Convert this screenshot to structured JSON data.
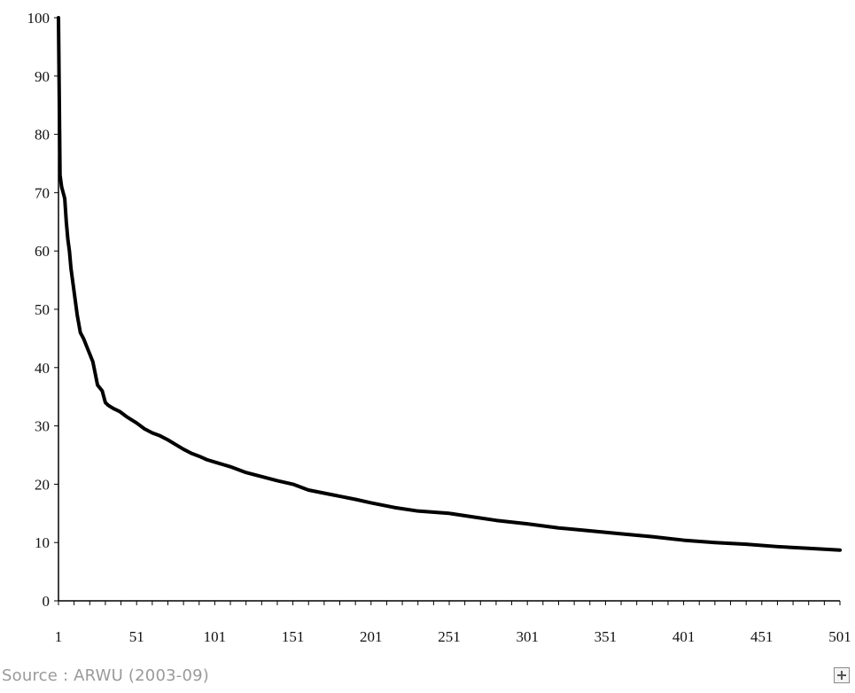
{
  "chart_data": {
    "type": "line",
    "title": "",
    "xlabel": "",
    "ylabel": "",
    "xlim": [
      1,
      501
    ],
    "ylim": [
      0,
      100
    ],
    "grid": false,
    "legend": "none",
    "x_ticks": [
      "1",
      "51",
      "101",
      "151",
      "201",
      "251",
      "301",
      "351",
      "401",
      "451",
      "501"
    ],
    "y_ticks": [
      "0",
      "10",
      "20",
      "30",
      "40",
      "50",
      "60",
      "70",
      "80",
      "90",
      "100"
    ],
    "line_color": "#000000",
    "series": [
      {
        "x": [
          1,
          2,
          3,
          4,
          5,
          6,
          7,
          8,
          9,
          10,
          11,
          13,
          15,
          17,
          20,
          23,
          26,
          29,
          31,
          33,
          36,
          40,
          45,
          51,
          56,
          61,
          66,
          71,
          76,
          81,
          86,
          91,
          96,
          101,
          111,
          121,
          131,
          141,
          151,
          161,
          176,
          191,
          201,
          216,
          231,
          251,
          266,
          281,
          301,
          321,
          341,
          361,
          381,
          401,
          421,
          441,
          461,
          481,
          501
        ],
        "y": [
          100,
          73,
          71,
          70,
          69,
          65,
          62,
          60,
          57,
          55,
          53,
          49,
          46,
          45,
          43,
          41,
          37,
          36,
          34,
          33.5,
          33,
          32.5,
          31.5,
          30.5,
          29.5,
          28.8,
          28.3,
          27.6,
          26.8,
          26,
          25.3,
          24.8,
          24.2,
          23.8,
          23,
          22,
          21.3,
          20.6,
          20,
          19,
          18.2,
          17.4,
          16.8,
          16,
          15.4,
          15,
          14.4,
          13.8,
          13.2,
          12.5,
          12,
          11.5,
          11,
          10.4,
          10,
          9.7,
          9.3,
          9,
          8.7
        ]
      }
    ]
  },
  "footer": {
    "source": "Source : ARWU (2003-09)",
    "expand_icon": "plus-box-icon"
  }
}
